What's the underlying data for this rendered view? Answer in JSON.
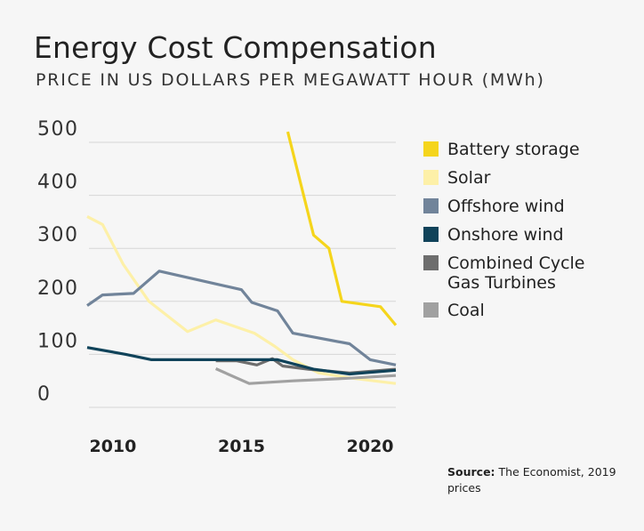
{
  "header": {
    "title": "Energy Cost Compensation",
    "subtitle": "PRICE IN US DOLLARS PER MEGAWATT HOUR (MWh)"
  },
  "footer": {
    "source_label": "Source:",
    "source_text": "The Economist, 2019 prices"
  },
  "chart_data": {
    "type": "line",
    "title": "Energy Cost Compensation",
    "subtitle": "PRICE IN US DOLLARS PER MEGAWATT HOUR (MWh)",
    "xlabel": "",
    "ylabel": "",
    "xlim": [
      2009,
      2021
    ],
    "ylim": [
      0,
      520
    ],
    "yticks": [
      0,
      100,
      200,
      300,
      400,
      500
    ],
    "xticks": [
      2010,
      2015,
      2020
    ],
    "grid": "horizontal",
    "legend": "right",
    "series": [
      {
        "name": "Battery storage",
        "color": "#f5d51c",
        "x": [
          2016.8,
          2017.8,
          2018.4,
          2018.9,
          2020.4,
          2021
        ],
        "y": [
          520,
          325,
          300,
          200,
          190,
          155
        ]
      },
      {
        "name": "Solar",
        "color": "#fdf0a8",
        "x": [
          2009,
          2009.6,
          2010.4,
          2011.4,
          2012.9,
          2014,
          2015.5,
          2016.3,
          2017,
          2018,
          2019.3,
          2021
        ],
        "y": [
          360,
          345,
          270,
          200,
          143,
          165,
          140,
          115,
          90,
          65,
          55,
          45
        ]
      },
      {
        "name": "Offshore wind",
        "color": "#71849a",
        "x": [
          2009,
          2009.6,
          2010.8,
          2011.8,
          2015,
          2015.4,
          2016.4,
          2017,
          2019.2,
          2020,
          2021
        ],
        "y": [
          192,
          212,
          215,
          257,
          222,
          198,
          182,
          140,
          120,
          90,
          80
        ]
      },
      {
        "name": "Onshore wind",
        "color": "#10435a",
        "x": [
          2009,
          2010.5,
          2011.5,
          2014,
          2016.4,
          2017.8,
          2019.2,
          2021
        ],
        "y": [
          113,
          100,
          90,
          90,
          90,
          72,
          63,
          70
        ]
      },
      {
        "name": "Combined Cycle Gas Turbines",
        "color": "#6d6d6d",
        "x": [
          2014,
          2014.8,
          2015.6,
          2016.2,
          2016.6,
          2017.6,
          2019.2,
          2021
        ],
        "y": [
          88,
          88,
          80,
          92,
          78,
          72,
          65,
          72
        ]
      },
      {
        "name": "Coal",
        "color": "#a1a1a1",
        "x": [
          2014,
          2015.3,
          2017,
          2019.2,
          2021
        ],
        "y": [
          73,
          45,
          50,
          55,
          60
        ]
      }
    ]
  }
}
